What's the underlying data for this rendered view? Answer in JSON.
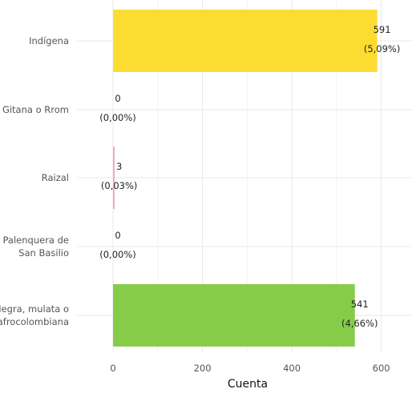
{
  "chart_data": {
    "type": "bar",
    "orientation": "horizontal",
    "categories": [
      [
        "Indígena"
      ],
      [
        "Gitana o Rrom"
      ],
      [
        "Raizal"
      ],
      [
        "Palenquera de",
        "San Basilio"
      ],
      [
        "Negra, mulata o",
        "afrocolombiana"
      ]
    ],
    "values": [
      591,
      0,
      3,
      0,
      541
    ],
    "labels": [
      [
        "591",
        "(5,09%)"
      ],
      [
        "0",
        "(0,00%)"
      ],
      [
        "3",
        "(0,03%)"
      ],
      [
        "0",
        "(0,00%)"
      ],
      [
        "541",
        "(4,66%)"
      ]
    ],
    "colors": [
      "#FDDC32",
      "#BDBDBD",
      "#F4A6C8",
      "#BDBDBD",
      "#86CC4A"
    ],
    "xlabel": "Cuenta",
    "ylabel": "",
    "xticks": [
      0,
      200,
      400,
      600
    ],
    "xlim": [
      0,
      620
    ],
    "grid": true,
    "legend": "none"
  }
}
